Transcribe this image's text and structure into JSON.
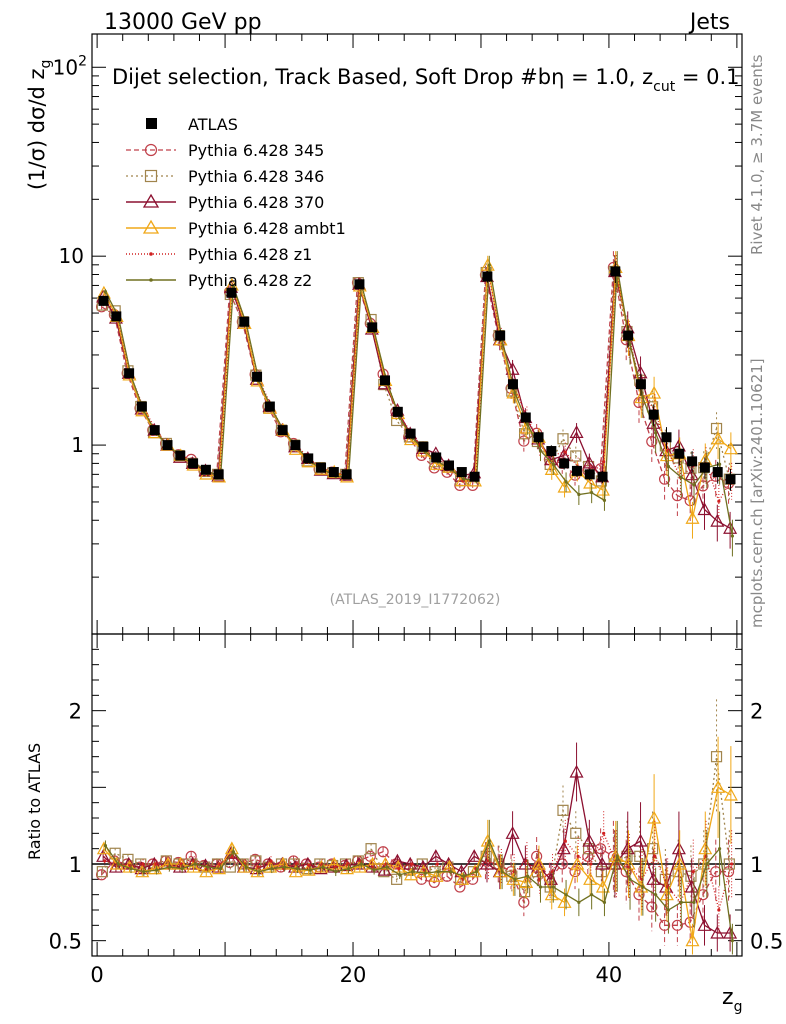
{
  "header": {
    "left": "13000 GeV pp",
    "right": "Jets"
  },
  "plot_title": "Dijet selection, Track Based, Soft Drop #b",
  "plot_title_suffix": "η = 1.0, z",
  "plot_title_sub": "cut",
  "plot_title_end": " = 0.1",
  "side_text": {
    "rivet": "Rivet 4.1.0, ≥ 3.7M events",
    "mcplots": "mcplots.cern.ch [arXiv:2401.10621]"
  },
  "analysis_id": "(ATLAS_2019_I1772062)",
  "axes": {
    "y_main": "(1/σ) dσ/d z",
    "y_main_sub": "g",
    "y_ratio": "Ratio to ATLAS",
    "x": "z",
    "x_sub": "g",
    "y_main_ticks": [
      {
        "value": 1,
        "label": "1"
      },
      {
        "value": 10,
        "label": "10"
      },
      {
        "value": 100,
        "label": "10",
        "sup": "2"
      }
    ],
    "x_ticks": [
      {
        "value": 0,
        "label": "0"
      },
      {
        "value": 20,
        "label": "20"
      },
      {
        "value": 40,
        "label": "40"
      }
    ],
    "ratio_ticks": [
      {
        "value": 0.5,
        "label": "0.5"
      },
      {
        "value": 1,
        "label": "1"
      },
      {
        "value": 2,
        "label": "2"
      }
    ]
  },
  "chart_data": {
    "type": "scatter",
    "xlim": [
      -0.4,
      50.4
    ],
    "ylim_main": [
      0.1,
      150
    ],
    "ylim_ratio": [
      0.4,
      2.5
    ],
    "x": [
      0.5,
      1.5,
      2.5,
      3.5,
      4.5,
      5.5,
      6.5,
      7.5,
      8.5,
      9.5,
      10.5,
      11.5,
      12.5,
      13.5,
      14.5,
      15.5,
      16.5,
      17.5,
      18.5,
      19.5,
      20.5,
      21.5,
      22.5,
      23.5,
      24.5,
      25.5,
      26.5,
      27.5,
      28.5,
      29.5,
      30.5,
      31.5,
      32.5,
      33.5,
      34.5,
      35.5,
      36.5,
      37.5,
      38.5,
      39.5,
      40.5,
      41.5,
      42.5,
      43.5,
      44.5,
      45.5,
      46.5,
      47.5,
      48.5,
      49.5
    ],
    "data": {
      "name": "ATLAS",
      "color": "#000000",
      "values": [
        5.8,
        4.8,
        2.4,
        1.6,
        1.2,
        1.0,
        0.88,
        0.8,
        0.74,
        0.7,
        6.4,
        4.5,
        2.3,
        1.6,
        1.2,
        1.0,
        0.85,
        0.76,
        0.72,
        0.7,
        7.1,
        4.2,
        2.2,
        1.5,
        1.15,
        0.98,
        0.86,
        0.78,
        0.72,
        0.68,
        7.8,
        3.8,
        2.1,
        1.4,
        1.1,
        0.93,
        0.8,
        0.73,
        0.7,
        0.68,
        8.3,
        3.8,
        2.1,
        1.45,
        1.1,
        0.9,
        0.82,
        0.76,
        0.72,
        0.66
      ]
    },
    "series": [
      {
        "name": "Pythia 6.428 345",
        "color": "#c0404a",
        "marker": "circle",
        "dash": "5,3",
        "ratios": [
          0.93,
          1.02,
          1.0,
          0.98,
          1.0,
          1.02,
          1.01,
          1.05,
          0.99,
          1.0,
          1.01,
          1.0,
          1.03,
          1.0,
          0.98,
          1.02,
          1.0,
          0.98,
          1.0,
          0.99,
          1.02,
          1.05,
          1.08,
          1.0,
          0.96,
          0.9,
          0.88,
          0.92,
          0.85,
          0.9,
          1.02,
          1.0,
          0.95,
          0.75,
          1.05,
          0.9,
          1.0,
          0.95,
          1.05,
          1.1,
          1.05,
          0.95,
          0.8,
          0.72,
          0.6,
          0.6,
          0.62,
          0.8,
          0.95,
          0.95
        ]
      },
      {
        "name": "Pythia 6.428 346",
        "color": "#a0844c",
        "marker": "square",
        "dash": "2,3",
        "ratios": [
          0.95,
          1.07,
          1.03,
          1.0,
          0.97,
          1.02,
          1.0,
          1.0,
          0.98,
          1.0,
          0.98,
          1.0,
          1.02,
          0.98,
          1.0,
          1.0,
          0.97,
          1.0,
          0.99,
          1.0,
          1.02,
          1.1,
          0.95,
          0.9,
          0.96,
          1.0,
          0.95,
          0.98,
          0.9,
          0.95,
          1.05,
          1.0,
          0.92,
          0.82,
          0.95,
          0.85,
          1.35,
          1.2,
          1.1,
          0.95,
          1.0,
          1.05,
          1.05,
          1.1,
          0.9,
          0.95,
          0.92,
          1.0,
          1.7,
          1.0
        ]
      },
      {
        "name": "Pythia 6.428 370",
        "color": "#8c1030",
        "marker": "triangle",
        "dash": "",
        "ratios": [
          1.05,
          0.98,
          1.0,
          0.97,
          1.0,
          1.0,
          0.98,
          1.0,
          0.99,
          0.98,
          1.07,
          0.98,
          0.97,
          1.0,
          1.0,
          0.98,
          1.0,
          0.97,
          0.98,
          0.99,
          1.0,
          0.98,
          0.96,
          1.02,
          1.0,
          0.98,
          1.05,
          1.0,
          0.95,
          1.05,
          1.0,
          0.95,
          1.2,
          1.0,
          0.98,
          0.9,
          1.1,
          1.6,
          1.15,
          1.0,
          1.0,
          1.1,
          1.15,
          0.9,
          0.85,
          1.1,
          0.85,
          0.6,
          0.55,
          0.55
        ]
      },
      {
        "name": "Pythia 6.428 ambt1",
        "color": "#f0a818",
        "marker": "triangle",
        "dash": "",
        "ratios": [
          1.1,
          1.0,
          0.98,
          0.95,
          0.97,
          1.0,
          1.0,
          0.98,
          0.95,
          0.97,
          1.1,
          0.98,
          0.95,
          0.98,
          1.0,
          0.95,
          0.96,
          0.98,
          1.0,
          0.97,
          0.98,
          1.0,
          1.0,
          0.98,
          0.93,
          0.95,
          0.92,
          0.98,
          0.9,
          0.95,
          1.15,
          0.95,
          0.9,
          0.88,
          1.0,
          0.8,
          0.75,
          1.0,
          0.9,
          0.85,
          1.05,
          1.0,
          0.85,
          1.3,
          0.8,
          1.0,
          0.5,
          1.1,
          1.5,
          1.45
        ]
      },
      {
        "name": "Pythia 6.428 z1",
        "color": "#d02020",
        "marker": "dot",
        "dash": "1,2",
        "ratios": [
          1.02,
          1.0,
          0.99,
          1.0,
          1.0,
          0.98,
          1.0,
          1.02,
          0.97,
          1.0,
          1.05,
          1.0,
          0.98,
          1.02,
          0.97,
          1.0,
          0.99,
          1.0,
          0.98,
          1.0,
          1.02,
          0.98,
          1.0,
          0.97,
          1.0,
          0.96,
          1.0,
          0.95,
          0.9,
          0.97,
          1.02,
          0.98,
          0.95,
          1.02,
          0.9,
          0.95,
          1.15,
          1.05,
          1.0,
          1.2,
          1.0,
          0.98,
          0.9,
          1.05,
          0.85,
          0.75,
          0.95,
          1.05,
          0.7,
          1.0
        ]
      },
      {
        "name": "Pythia 6.428 z2",
        "color": "#707020",
        "marker": "dot",
        "dash": "",
        "ratios": [
          1.12,
          1.0,
          0.97,
          0.95,
          0.96,
          0.98,
          0.97,
          1.0,
          0.98,
          0.97,
          1.08,
          0.98,
          0.95,
          0.97,
          0.98,
          0.97,
          0.96,
          0.98,
          0.95,
          0.97,
          1.0,
          0.96,
          0.98,
          0.93,
          0.95,
          0.94,
          0.95,
          0.95,
          0.92,
          0.95,
          1.15,
          0.95,
          0.9,
          0.92,
          0.85,
          0.85,
          0.8,
          0.75,
          0.8,
          0.75,
          1.05,
          0.9,
          0.85,
          0.8,
          0.7,
          0.75,
          0.75,
          1.0,
          1.1,
          0.5
        ]
      }
    ]
  }
}
